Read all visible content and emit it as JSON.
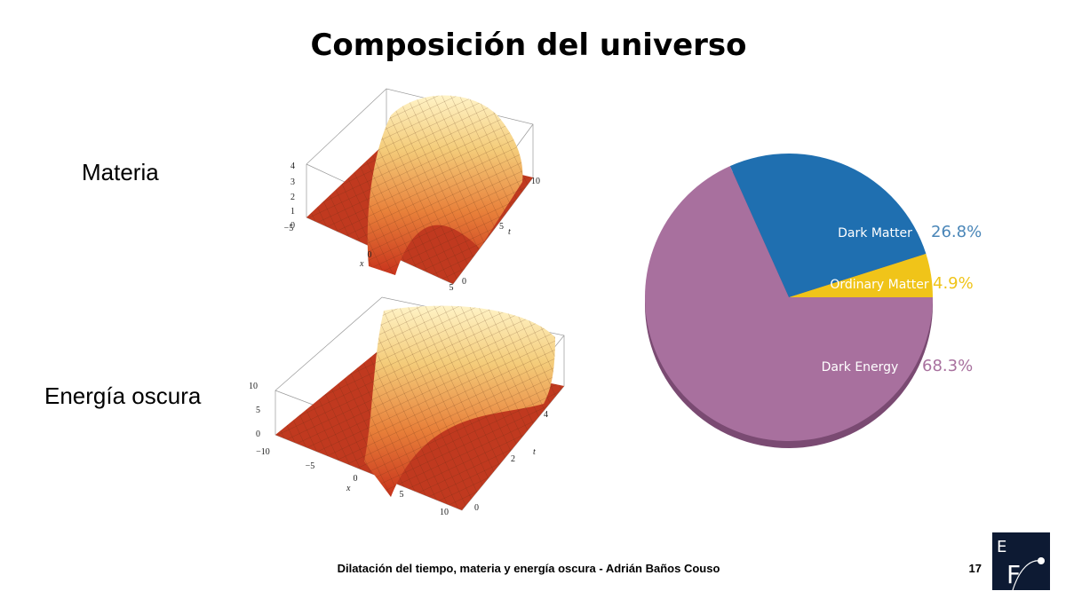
{
  "title": "Composición del universo",
  "rows": [
    {
      "label": "Materia",
      "plot": {
        "z_ticks": [
          "4",
          "3",
          "2",
          "1",
          "0"
        ],
        "x_ticks": [
          "−5",
          "0",
          "5"
        ],
        "x_label": "x",
        "t_ticks": [
          "0",
          "5",
          "10"
        ],
        "t_label": "t"
      }
    },
    {
      "label": "Energía oscura",
      "plot": {
        "z_ticks": [
          "10",
          "5",
          "0"
        ],
        "x_ticks": [
          "−10",
          "−5",
          "0",
          "5",
          "10"
        ],
        "x_label": "x",
        "t_ticks": [
          "0",
          "2",
          "4"
        ],
        "t_label": "t"
      }
    }
  ],
  "chart_data": {
    "type": "pie",
    "categories": [
      "Ordinary Matter",
      "Dark Matter",
      "Dark Energy"
    ],
    "values": [
      4.9,
      26.8,
      68.3
    ],
    "value_labels": [
      "4.9%",
      "26.8%",
      "68.3%"
    ],
    "colors": [
      "#f0c419",
      "#1f6fb0",
      "#a8709e"
    ],
    "label_colors": [
      "#f0c419",
      "#4a86b8",
      "#a8709e"
    ]
  },
  "footer": "Dilatación del tiempo, materia y energía oscura - Adrián Baños Couso",
  "page_number": "17",
  "logo": {
    "top": "E",
    "bottom": "F"
  }
}
